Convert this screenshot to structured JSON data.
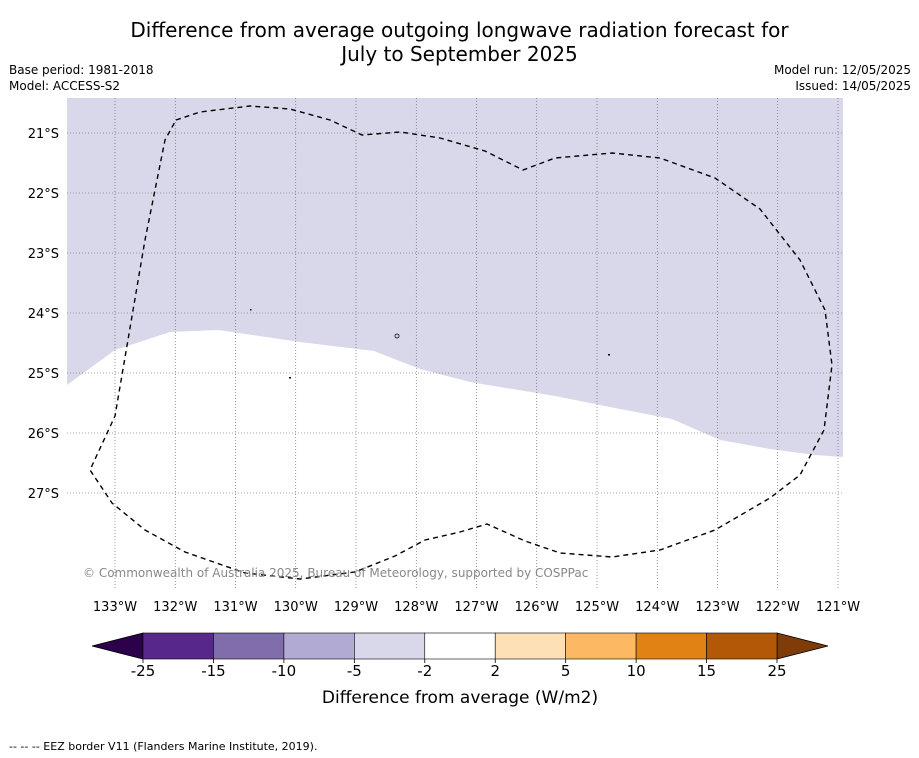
{
  "title": {
    "line1": "Difference from average outgoing longwave radiation forecast for",
    "line2": "July to September 2025"
  },
  "meta": {
    "base_period": "Base period: 1981-2018",
    "model": "Model: ACCESS-S2",
    "model_run": "Model run: 12/05/2025",
    "issued": "Issued: 14/05/2025"
  },
  "map": {
    "lon_ticks": [
      "133°W",
      "132°W",
      "131°W",
      "130°W",
      "129°W",
      "128°W",
      "127°W",
      "126°W",
      "125°W",
      "124°W",
      "123°W",
      "122°W",
      "121°W"
    ],
    "lat_ticks": [
      "21°S",
      "22°S",
      "23°S",
      "24°S",
      "25°S",
      "26°S",
      "27°S"
    ],
    "copyright": "© Commonwealth of Australia 2025, Bureau of Meteorology, supported by COSPPac",
    "region_colors": {
      "minus5_to_minus2": "#d8d8ea",
      "minus2_to_2": "#ffffff"
    },
    "eez_color": "#000000"
  },
  "colorbar": {
    "ticks": [
      "-25",
      "-15",
      "-10",
      "-5",
      "-2",
      "2",
      "5",
      "10",
      "15",
      "25"
    ],
    "colors": [
      "#58278c",
      "#7f6eab",
      "#b1aad2",
      "#d8d8ea",
      "#ffffff",
      "#fee0b6",
      "#fdb863",
      "#e08214",
      "#b35806"
    ],
    "under_color": "#2d004b",
    "over_color": "#7f3b08",
    "label": "Difference from average (W/m2)"
  },
  "footer": "-- -- -- EEZ border V11 (Flanders Marine Institute, 2019)."
}
